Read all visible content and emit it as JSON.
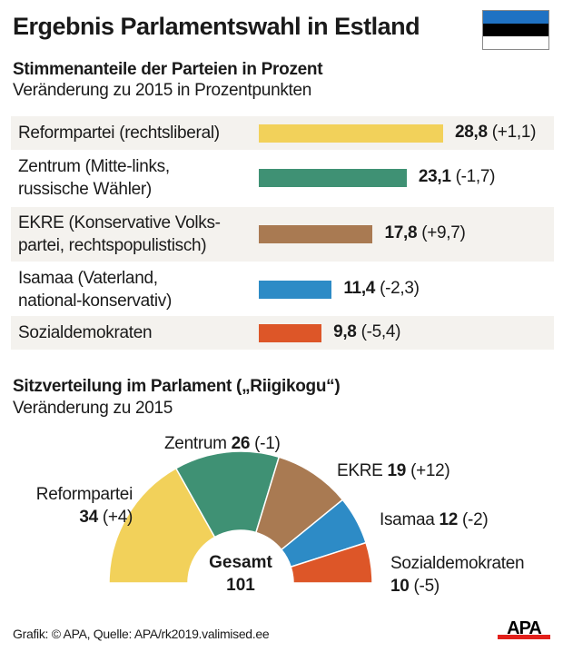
{
  "title": "Ergebnis Parlamentswahl in Estland",
  "flag": {
    "name": "Estonia",
    "colors": [
      "#1f72c3",
      "#000000",
      "#ffffff"
    ]
  },
  "footer": {
    "credit": "Grafik: © APA, Quelle: APA/rk2019.valimised.ee",
    "logo_text": "APA"
  },
  "chart_data": [
    {
      "type": "bar",
      "orientation": "horizontal",
      "title": "Stimmenanteile der Parteien in Prozent",
      "subtitle": "Veränderung zu 2015 in Prozentpunkten",
      "categories": [
        [
          "Reformpartei (rechtsliberal)"
        ],
        [
          "Zentrum (Mitte-links,",
          "russische Wähler)"
        ],
        [
          "EKRE (Konservative Volks-",
          "partei, rechtspopulistisch)"
        ],
        [
          "Isamaa (Vaterland,",
          "national-konservativ)"
        ],
        [
          "Sozialdemokraten"
        ]
      ],
      "values": [
        28.8,
        23.1,
        17.8,
        11.4,
        9.8
      ],
      "value_labels": [
        "28,8",
        "23,1",
        "17,8",
        "11,4",
        "9,8"
      ],
      "change_labels": [
        "(+1,1)",
        "(-1,7)",
        "(+9,7)",
        "(-2,3)",
        "(-5,4)"
      ],
      "colors": [
        "#f2d15a",
        "#3f9174",
        "#a97a52",
        "#2d8bc6",
        "#dd5628"
      ],
      "xlim": [
        0,
        30
      ]
    },
    {
      "type": "pie",
      "variant": "semicircle",
      "title": "Sitzverteilung im Parlament („Riigikogu“)",
      "subtitle": "Veränderung zu 2015",
      "categories": [
        "Reformpartei",
        "Zentrum",
        "EKRE",
        "Isamaa",
        "Sozialdemokraten"
      ],
      "values": [
        34,
        26,
        19,
        12,
        10
      ],
      "value_labels": [
        "34",
        "26",
        "19",
        "12",
        "10"
      ],
      "change_labels": [
        "(+4)",
        "(-1)",
        "(+12)",
        "(-2)",
        "(-5)"
      ],
      "colors": [
        "#f2d15a",
        "#3f9174",
        "#a97a52",
        "#2d8bc6",
        "#dd5628"
      ],
      "total_label": "Gesamt",
      "total_value": "101"
    }
  ]
}
